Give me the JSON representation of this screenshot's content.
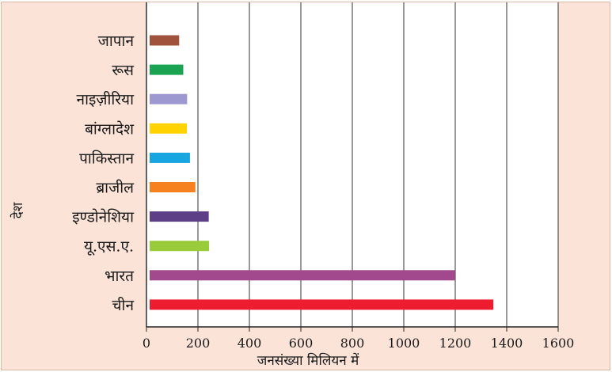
{
  "chart_data": {
    "type": "bar",
    "orientation": "horizontal",
    "title": "",
    "xlabel": "जनसंख्या मिलियन में",
    "ylabel": "देश",
    "categories": [
      "जापान",
      "रूस",
      "नाइज़ीरिया",
      "बांग्लादेश",
      "पाकिस्तान",
      "ब्राजील",
      "इण्डोनेशिया",
      "यू.एस.ए.",
      "भारत",
      "चीन"
    ],
    "values": [
      127,
      143,
      158,
      157,
      169,
      190,
      242,
      243,
      1200,
      1348
    ],
    "colors": [
      "#a0523d",
      "#1aa350",
      "#9e98d0",
      "#ffd200",
      "#17a6e0",
      "#f5821f",
      "#5c3f86",
      "#99cc3a",
      "#a2488c",
      "#ed1c2e"
    ],
    "xlim": [
      0,
      1600
    ],
    "xticks": [
      "0",
      "200",
      "400",
      "600",
      "800",
      "1000",
      "1200",
      "1400",
      "1600"
    ],
    "grid": "vertical",
    "legend": "none"
  }
}
